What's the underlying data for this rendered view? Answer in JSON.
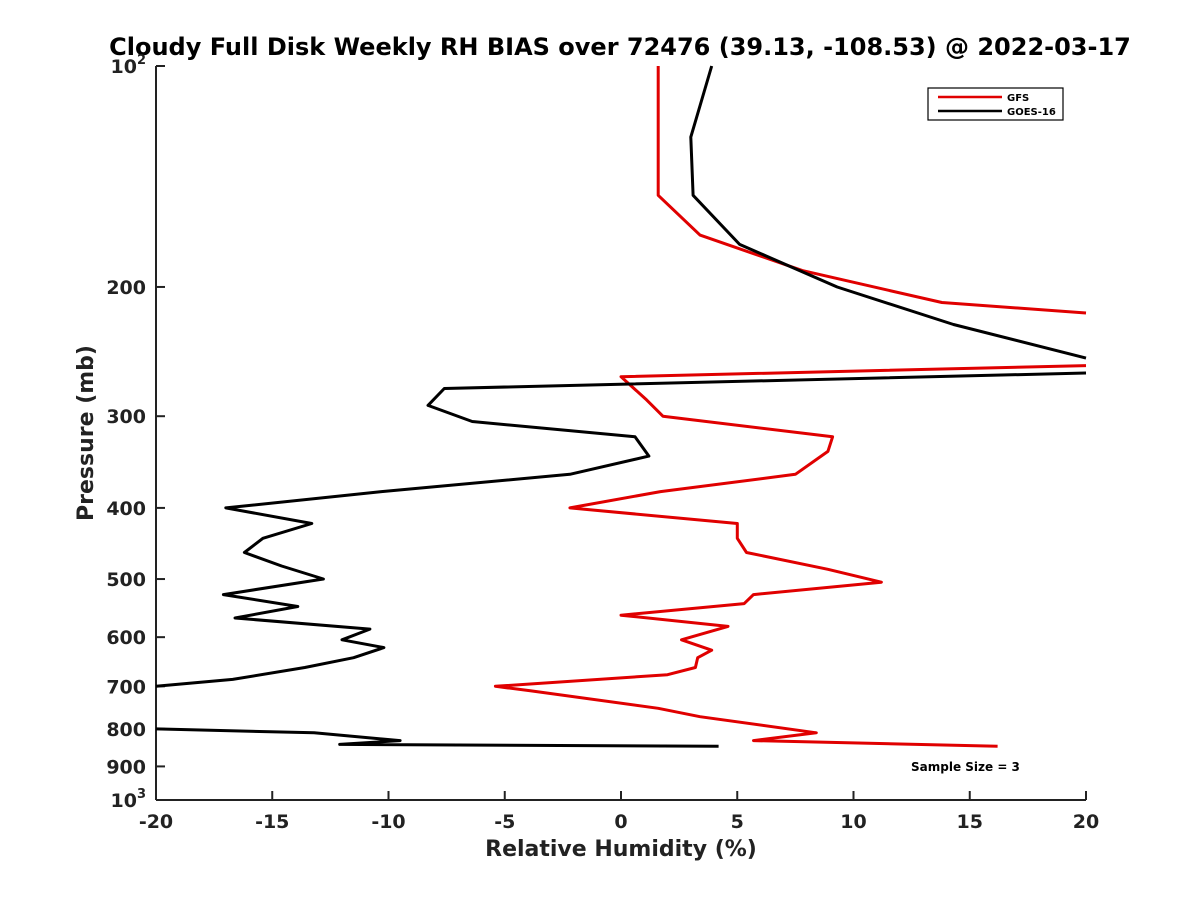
{
  "chart_data": {
    "type": "line",
    "title": "Cloudy Full Disk Weekly RH BIAS over 72476 (39.13, -108.53) @ 2022-03-17",
    "xlabel": "Relative Humidity (%)",
    "ylabel": "Pressure (mb)",
    "xlim": [
      -20,
      20
    ],
    "ylim": [
      1000,
      100
    ],
    "y_scale": "log",
    "y_reversed": true,
    "x_ticks": [
      "-20",
      "-15",
      "-10",
      "-5",
      "0",
      "5",
      "10",
      "15",
      "20"
    ],
    "y_ticks": [
      {
        "value": 100,
        "label": "10",
        "sup": "2"
      },
      {
        "value": 200,
        "label": "200",
        "sup": ""
      },
      {
        "value": 300,
        "label": "300",
        "sup": ""
      },
      {
        "value": 400,
        "label": "400",
        "sup": ""
      },
      {
        "value": 500,
        "label": "500",
        "sup": ""
      },
      {
        "value": 600,
        "label": "600",
        "sup": ""
      },
      {
        "value": 700,
        "label": "700",
        "sup": ""
      },
      {
        "value": 800,
        "label": "800",
        "sup": ""
      },
      {
        "value": 900,
        "label": "900",
        "sup": ""
      },
      {
        "value": 1000,
        "label": "10",
        "sup": "3"
      }
    ],
    "legend_position": "top-right",
    "grid": false,
    "annotation": "Sample Size = 3",
    "series": [
      {
        "name": "GFS",
        "color": "#e00000",
        "points": [
          [
            1.6,
            100
          ],
          [
            1.6,
            150
          ],
          [
            3.4,
            170
          ],
          [
            7.8,
            190
          ],
          [
            13.8,
            210
          ],
          [
            20,
            217
          ],
          null,
          [
            20,
            256
          ],
          [
            0,
            265
          ],
          [
            1.1,
            285
          ],
          [
            1.8,
            300
          ],
          [
            9.1,
            320
          ],
          [
            8.9,
            335
          ],
          [
            7.5,
            360
          ],
          [
            1.7,
            380
          ],
          [
            -2.2,
            400
          ],
          [
            5.0,
            420
          ],
          [
            5.0,
            440
          ],
          [
            5.4,
            460
          ],
          [
            8.9,
            485
          ],
          [
            11.2,
            505
          ],
          [
            5.7,
            525
          ],
          [
            5.3,
            540
          ],
          [
            0,
            560
          ],
          [
            4.6,
            580
          ],
          [
            2.6,
            605
          ],
          [
            3.9,
            625
          ],
          [
            3.3,
            640
          ],
          [
            3.2,
            660
          ],
          [
            2.0,
            675
          ],
          [
            -5.4,
            700
          ],
          [
            -3.9,
            710
          ],
          [
            1.6,
            750
          ],
          [
            3.4,
            770
          ],
          [
            8.4,
            810
          ],
          [
            5.7,
            830
          ],
          [
            16.2,
            845
          ]
        ]
      },
      {
        "name": "GOES-16",
        "color": "#000000",
        "points": [
          [
            3.9,
            100
          ],
          [
            3.0,
            125
          ],
          [
            3.1,
            150
          ],
          [
            5.1,
            175
          ],
          [
            9.3,
            200
          ],
          [
            14.3,
            225
          ],
          [
            20,
            250
          ],
          null,
          [
            20,
            262
          ],
          [
            -7.6,
            275
          ],
          [
            -8.3,
            290
          ],
          [
            -6.4,
            305
          ],
          [
            0.6,
            320
          ],
          [
            1.2,
            340
          ],
          [
            -2.2,
            360
          ],
          [
            -10.3,
            380
          ],
          [
            -17.0,
            400
          ],
          [
            -13.3,
            420
          ],
          [
            -15.4,
            440
          ],
          [
            -16.2,
            460
          ],
          [
            -14.6,
            480
          ],
          [
            -12.8,
            500
          ],
          [
            -17.1,
            525
          ],
          [
            -13.9,
            545
          ],
          [
            -16.6,
            565
          ],
          [
            -10.8,
            585
          ],
          [
            -12.0,
            605
          ],
          [
            -10.2,
            620
          ],
          [
            -11.5,
            640
          ],
          [
            -13.6,
            660
          ],
          [
            -16.7,
            685
          ],
          [
            -20,
            700
          ],
          null,
          [
            -20,
            800
          ],
          [
            -13.2,
            810
          ],
          [
            -9.5,
            830
          ],
          [
            -12.1,
            840
          ],
          [
            4.2,
            845
          ]
        ]
      }
    ]
  }
}
